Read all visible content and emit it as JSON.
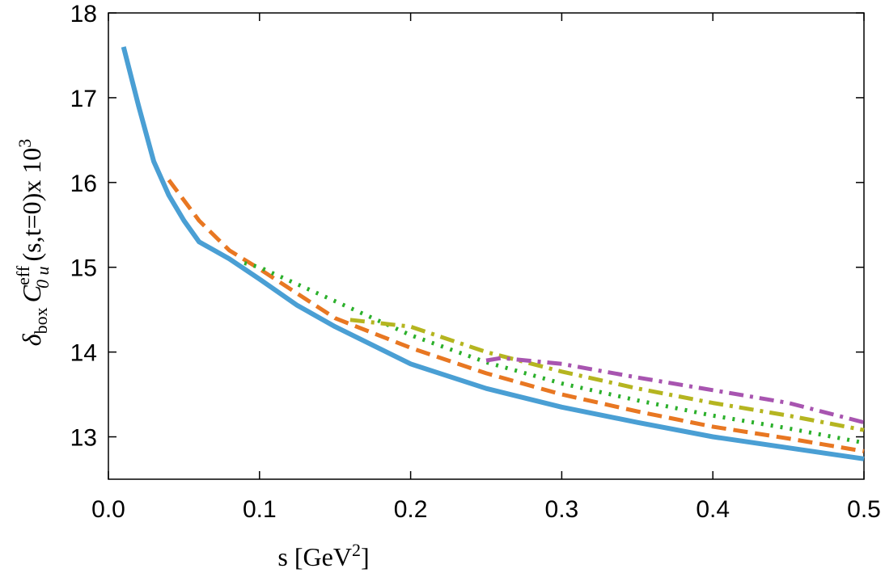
{
  "chart_data": {
    "type": "line",
    "y_label": {
      "delta": "δ",
      "delta_sub": "box",
      "c": "C",
      "c_sup": "eff",
      "c_sub": "0 u",
      "rest": "(s,t=0)x 10",
      "rest_sup": "3"
    },
    "x_label": {
      "main": "s [GeV",
      "sup": "2",
      "end": "]"
    },
    "xlim": [
      0,
      0.5
    ],
    "ylim": [
      12.5,
      18
    ],
    "xticks": [
      {
        "value": 0,
        "label": "0.0"
      },
      0.1,
      0.2,
      0.3,
      0.4,
      0.5
    ],
    "yticks": [
      13,
      14,
      15,
      16,
      17,
      18
    ],
    "series": [
      {
        "color": "#4a9fd4",
        "style": "solid",
        "x": [
          0.01,
          0.02,
          0.03,
          0.04,
          0.05,
          0.06,
          0.08,
          0.1,
          0.125,
          0.15,
          0.2,
          0.25,
          0.3,
          0.35,
          0.4,
          0.45,
          0.5
        ],
        "values": [
          17.6,
          16.9,
          16.25,
          15.85,
          15.55,
          15.3,
          15.1,
          14.86,
          14.55,
          14.3,
          13.86,
          13.57,
          13.35,
          13.17,
          13.0,
          12.87,
          12.74
        ]
      },
      {
        "color": "#e87722",
        "style": "dashed",
        "x": [
          0.04,
          0.06,
          0.08,
          0.1,
          0.15,
          0.2,
          0.25,
          0.3,
          0.35,
          0.4,
          0.45,
          0.5
        ],
        "values": [
          16.03,
          15.55,
          15.2,
          14.98,
          14.4,
          14.05,
          13.75,
          13.5,
          13.3,
          13.12,
          12.98,
          12.83
        ]
      },
      {
        "color": "#2bb02b",
        "style": "dotted",
        "x": [
          0.09,
          0.1,
          0.15,
          0.2,
          0.25,
          0.3,
          0.35,
          0.4,
          0.45,
          0.5
        ],
        "values": [
          15.05,
          15.0,
          14.6,
          14.2,
          13.88,
          13.63,
          13.43,
          13.25,
          13.1,
          12.93
        ]
      },
      {
        "color": "#b5b520",
        "style": "dashdot",
        "x": [
          0.16,
          0.2,
          0.25,
          0.3,
          0.35,
          0.4,
          0.45,
          0.5
        ],
        "values": [
          14.38,
          14.3,
          14.0,
          13.77,
          13.57,
          13.4,
          13.25,
          13.08
        ]
      },
      {
        "color": "#a855b0",
        "style": "dashdot",
        "x": [
          0.25,
          0.26,
          0.3,
          0.35,
          0.4,
          0.45,
          0.5
        ],
        "values": [
          13.9,
          13.93,
          13.86,
          13.7,
          13.55,
          13.4,
          13.17
        ]
      }
    ]
  }
}
